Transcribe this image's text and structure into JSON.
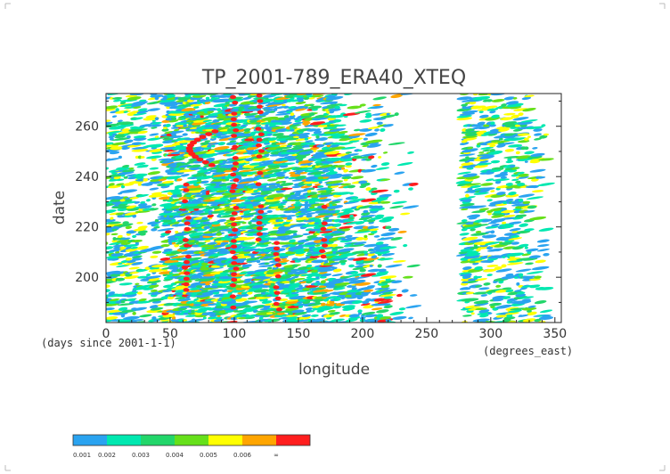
{
  "chart_data": {
    "type": "heatmap",
    "title": "TP_2001-789_ERA40_XTEQ",
    "xlabel": "longitude",
    "ylabel": "date",
    "x_unit_note": "(degrees_east)",
    "y_unit_note": "(days since 2001-1-1)",
    "xlim": [
      0,
      355
    ],
    "ylim": [
      182,
      273
    ],
    "x_ticks": [
      0,
      50,
      100,
      150,
      200,
      250,
      300,
      350
    ],
    "y_ticks": [
      200,
      220,
      240,
      260
    ],
    "grid": false,
    "legend": {
      "placement": "bottom-left",
      "levels": [
        "0.001",
        "0.002",
        "0.003",
        "0.004",
        "0.005",
        "0.006",
        "∞"
      ],
      "colors": [
        "#2aa3f0",
        "#00e8b0",
        "#22d66a",
        "#66e01a",
        "#ffff00",
        "#ffa500",
        "#ff1e1e"
      ]
    }
  }
}
